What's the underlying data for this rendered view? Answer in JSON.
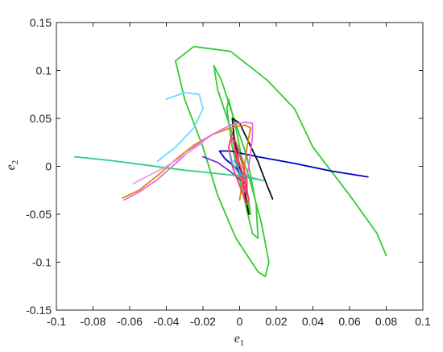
{
  "chart_data": {
    "type": "line",
    "xlabel": "e",
    "xlabel_sub": "1",
    "ylabel": "e",
    "ylabel_sub": "2",
    "xlim": [
      -0.1,
      0.1
    ],
    "ylim": [
      -0.15,
      0.15
    ],
    "x_ticks": [
      -0.1,
      -0.08,
      -0.06,
      -0.04,
      -0.02,
      0,
      0.02,
      0.04,
      0.06,
      0.08,
      0.1
    ],
    "x_tick_labels": [
      "-0.1",
      "-0.08",
      "-0.06",
      "-0.04",
      "-0.02",
      "0",
      "0.02",
      "0.04",
      "0.06",
      "0.08",
      "0.1"
    ],
    "y_ticks": [
      -0.15,
      -0.1,
      -0.05,
      0,
      0.05,
      0.1,
      0.15
    ],
    "y_tick_labels": [
      "-0.15",
      "-0.1",
      "-0.05",
      "0",
      "0.05",
      "0.1",
      "0.15"
    ],
    "grid": false,
    "series": [
      {
        "color": "#33cc33",
        "points": [
          [
            0.08,
            -0.093
          ],
          [
            0.075,
            -0.07
          ],
          [
            0.06,
            -0.03
          ],
          [
            0.04,
            0.02
          ],
          [
            0.03,
            0.06
          ],
          [
            0.015,
            0.09
          ],
          [
            -0.005,
            0.12
          ],
          [
            -0.025,
            0.125
          ],
          [
            -0.035,
            0.11
          ],
          [
            -0.03,
            0.07
          ],
          [
            -0.02,
            0.02
          ],
          [
            -0.012,
            -0.03
          ],
          [
            -0.002,
            -0.075
          ],
          [
            0.01,
            -0.11
          ],
          [
            0.014,
            -0.115
          ],
          [
            0.016,
            -0.1
          ],
          [
            0.012,
            -0.06
          ],
          [
            0.005,
            -0.01
          ],
          [
            -0.005,
            0.04
          ],
          [
            -0.012,
            0.08
          ],
          [
            -0.014,
            0.105
          ],
          [
            -0.01,
            0.09
          ],
          [
            -0.004,
            0.055
          ],
          [
            0.004,
            0.01
          ],
          [
            0.009,
            -0.04
          ],
          [
            0.01,
            -0.075
          ],
          [
            0.007,
            -0.07
          ],
          [
            0.002,
            -0.03
          ],
          [
            -0.004,
            0.02
          ],
          [
            -0.007,
            0.06
          ],
          [
            -0.006,
            0.07
          ],
          [
            -0.002,
            0.04
          ],
          [
            0.003,
            -0.01
          ],
          [
            0.006,
            -0.05
          ],
          [
            0.005,
            -0.045
          ],
          [
            0.001,
            -0.01
          ],
          [
            -0.002,
            0.02
          ],
          [
            -0.001,
            0.01
          ],
          [
            0.002,
            -0.02
          ]
        ]
      },
      {
        "color": "#0000cc",
        "points": [
          [
            0.07,
            -0.011
          ],
          [
            0.05,
            -0.005
          ],
          [
            0.03,
            0.003
          ],
          [
            0.01,
            0.01
          ],
          [
            -0.005,
            0.016
          ],
          [
            -0.011,
            0.016
          ],
          [
            -0.008,
            0.008
          ],
          [
            -0.003,
            0.0
          ],
          [
            0.0,
            -0.005
          ]
        ]
      },
      {
        "color": "#7733cc",
        "points": [
          [
            -0.02,
            0.01
          ],
          [
            -0.012,
            0.004
          ],
          [
            -0.006,
            -0.004
          ],
          [
            -0.001,
            -0.012
          ],
          [
            0.003,
            -0.018
          ]
        ]
      },
      {
        "color": "#111111",
        "points": [
          [
            0.018,
            -0.034
          ],
          [
            0.014,
            -0.015
          ],
          [
            0.01,
            0.005
          ],
          [
            0.005,
            0.025
          ],
          [
            0.0,
            0.045
          ],
          [
            -0.004,
            0.05
          ],
          [
            -0.003,
            0.03
          ],
          [
            0.0,
            0.0
          ],
          [
            0.003,
            -0.03
          ],
          [
            0.005,
            -0.05
          ]
        ]
      },
      {
        "color": "#dd8800",
        "points": [
          [
            -0.064,
            -0.033
          ],
          [
            -0.055,
            -0.025
          ],
          [
            -0.045,
            -0.01
          ],
          [
            -0.035,
            0.007
          ],
          [
            -0.025,
            0.022
          ],
          [
            -0.015,
            0.033
          ],
          [
            -0.005,
            0.04
          ],
          [
            0.003,
            0.043
          ],
          [
            0.006,
            0.04
          ],
          [
            0.004,
            0.02
          ],
          [
            0.002,
            -0.01
          ],
          [
            0.0,
            -0.035
          ]
        ]
      },
      {
        "color": "#ee66ee",
        "points": [
          [
            -0.063,
            -0.035
          ],
          [
            -0.055,
            -0.027
          ],
          [
            -0.045,
            -0.014
          ],
          [
            -0.035,
            0.003
          ],
          [
            -0.025,
            0.02
          ],
          [
            -0.015,
            0.033
          ],
          [
            -0.005,
            0.043
          ],
          [
            0.003,
            0.046
          ],
          [
            0.007,
            0.045
          ],
          [
            0.007,
            0.03
          ],
          [
            0.005,
            0.0
          ],
          [
            0.002,
            -0.03
          ]
        ]
      },
      {
        "color": "#33cc88",
        "points": [
          [
            -0.09,
            0.01
          ],
          [
            -0.07,
            0.006
          ],
          [
            -0.05,
            0.001
          ],
          [
            -0.03,
            -0.004
          ],
          [
            -0.01,
            -0.008
          ],
          [
            0.005,
            -0.011
          ],
          [
            0.013,
            -0.015
          ],
          [
            0.008,
            -0.013
          ],
          [
            -0.002,
            -0.01
          ]
        ]
      },
      {
        "color": "#ff3366",
        "points": [
          [
            -0.004,
            0.035
          ],
          [
            -0.006,
            0.02
          ],
          [
            -0.004,
            0.0
          ],
          [
            0.0,
            -0.02
          ],
          [
            0.004,
            -0.04
          ],
          [
            0.005,
            -0.035
          ],
          [
            0.002,
            -0.01
          ],
          [
            -0.002,
            0.015
          ],
          [
            -0.004,
            0.03
          ],
          [
            -0.002,
            0.025
          ],
          [
            0.001,
            0.005
          ],
          [
            0.004,
            -0.015
          ],
          [
            0.004,
            -0.03
          ],
          [
            0.002,
            -0.02
          ],
          [
            -0.001,
            0.0
          ],
          [
            -0.003,
            0.02
          ]
        ]
      },
      {
        "color": "#33aadd",
        "points": [
          [
            -0.005,
            0.012
          ],
          [
            -0.004,
            0.003
          ],
          [
            -0.001,
            -0.006
          ],
          [
            0.001,
            -0.01
          ],
          [
            0.0,
            -0.004
          ],
          [
            -0.003,
            0.006
          ]
        ]
      },
      {
        "color": "#ee99ee",
        "points": [
          [
            -0.058,
            -0.018
          ],
          [
            -0.05,
            -0.01
          ],
          [
            -0.04,
            0.0
          ],
          [
            -0.03,
            0.012
          ],
          [
            -0.02,
            0.025
          ]
        ]
      },
      {
        "color": "#66ddff",
        "points": [
          [
            -0.04,
            0.07
          ],
          [
            -0.03,
            0.077
          ],
          [
            -0.022,
            0.075
          ],
          [
            -0.02,
            0.06
          ],
          [
            -0.025,
            0.04
          ],
          [
            -0.035,
            0.02
          ],
          [
            -0.045,
            0.005
          ]
        ]
      }
    ]
  }
}
